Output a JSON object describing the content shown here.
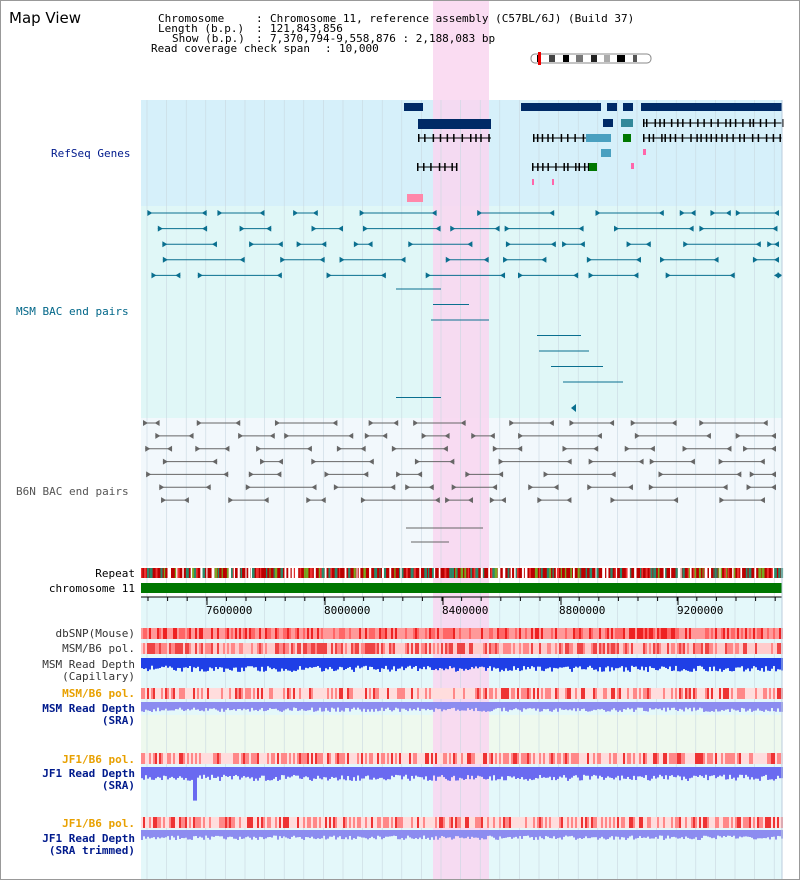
{
  "title": "Map View",
  "header": {
    "chromosome_key": "Chromosome",
    "chromosome_val": "Chromosome 11, reference assembly (C57BL/6J) (Build 37)",
    "length_key": "Length (b.p.)",
    "length_val": "121,843,856",
    "show_key": "Show (b.p.)",
    "show_val": "7,370,794-9,558,876 : 2,188,083 bp",
    "coverage_key": "Read coverage check span",
    "coverage_val": "10,000"
  },
  "tracks": {
    "refseq": "RefSeq Genes",
    "msm_bac": "MSM BAC end pairs",
    "b6n_bac": "B6N BAC end pairs",
    "repeat": "Repeat",
    "chromosome": "chromosome 11",
    "dbsnp": "dbSNP(Mouse)",
    "msm_pol": "MSM/B6 pol.",
    "msm_depth_cap_1": "MSM Read Depth",
    "msm_depth_cap_2": "(Capillary)",
    "msm_pol_2": "MSM/B6 pol.",
    "msm_depth_sra_1": "MSM Read Depth",
    "msm_depth_sra_2": "(SRA)",
    "jf1_pol": "JF1/B6 pol.",
    "jf1_depth_1": "JF1 Read Depth",
    "jf1_depth_2": "(SRA)",
    "jf1_pol_2": "JF1/B6 pol.",
    "jf1_trim_1": "JF1 Read Depth",
    "jf1_trim_2": "(SRA trimmed)"
  },
  "axis": {
    "ticks": [
      "7600000",
      "8000000",
      "8400000",
      "8800000",
      "9200000"
    ]
  },
  "colors": {
    "refseq_bg": "#d6f0fa",
    "msm_bg": "#e0f7f7",
    "b6n_bg": "#f2f8fc",
    "highlight": "#f9d6f0",
    "msm_label": "#006688",
    "navy": "#001a8c",
    "orange": "#e8a000",
    "gene": "#002a66",
    "chrom_green": "#007700"
  }
}
